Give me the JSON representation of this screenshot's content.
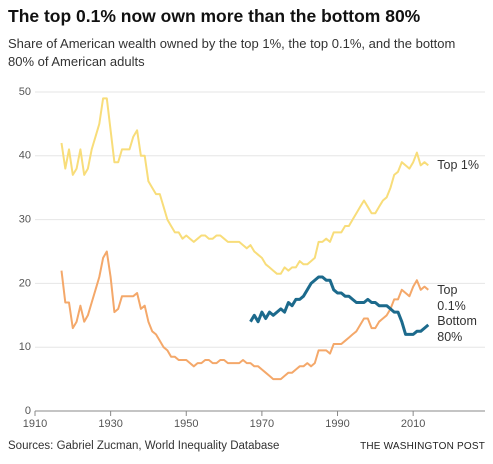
{
  "chart_data": {
    "type": "line",
    "title": "The top 0.1% now own more than the bottom 80%",
    "subtitle": "Share of American wealth owned by the top 1%, the top 0.1%, and the bottom 80% of American adults",
    "source": "Sources: Gabriel Zucman, World Inequality Database",
    "credit": "THE WASHINGTON POST",
    "x": [
      1917,
      1918,
      1919,
      1920,
      1921,
      1922,
      1923,
      1924,
      1925,
      1926,
      1927,
      1928,
      1929,
      1930,
      1931,
      1932,
      1933,
      1934,
      1935,
      1936,
      1937,
      1938,
      1939,
      1940,
      1941,
      1942,
      1943,
      1944,
      1945,
      1946,
      1947,
      1948,
      1949,
      1950,
      1951,
      1952,
      1953,
      1954,
      1955,
      1956,
      1957,
      1958,
      1959,
      1960,
      1961,
      1962,
      1963,
      1964,
      1965,
      1966,
      1967,
      1968,
      1969,
      1970,
      1971,
      1972,
      1973,
      1974,
      1975,
      1976,
      1977,
      1978,
      1979,
      1980,
      1981,
      1982,
      1983,
      1984,
      1985,
      1986,
      1987,
      1988,
      1989,
      1990,
      1991,
      1992,
      1993,
      1994,
      1995,
      1996,
      1997,
      1998,
      1999,
      2000,
      2001,
      2002,
      2003,
      2004,
      2005,
      2006,
      2007,
      2008,
      2009,
      2010,
      2011,
      2012,
      2013,
      2014
    ],
    "series": [
      {
        "name": "Top 1%",
        "color": "#f8dd7a",
        "values": [
          42,
          38,
          41,
          37,
          38,
          41,
          37,
          38,
          41,
          43,
          45,
          49,
          49,
          44,
          39,
          39,
          41,
          41,
          41,
          43,
          44,
          40,
          40,
          36,
          35,
          34,
          34,
          32,
          30,
          29,
          28,
          28,
          27,
          27.5,
          27,
          26.5,
          27,
          27.5,
          27.5,
          27,
          27,
          27.5,
          27.5,
          27,
          26.5,
          26.5,
          26.5,
          26.5,
          26,
          25.5,
          26,
          25,
          24.5,
          24,
          23,
          22.5,
          22,
          21.5,
          21.5,
          22.5,
          22,
          22.5,
          22.5,
          23.5,
          23,
          23,
          23.5,
          24,
          26.5,
          26.5,
          27,
          26.5,
          28,
          28,
          28,
          29,
          29,
          30,
          31,
          32,
          33,
          32,
          31,
          31,
          32,
          33,
          33.5,
          35,
          37,
          37.5,
          39,
          38.5,
          38,
          39,
          40.5,
          38.5,
          39,
          38.5
        ]
      },
      {
        "name": "Top 0.1%",
        "color": "#f4a86a",
        "values": [
          22,
          17,
          17,
          13,
          14,
          16.5,
          14,
          15,
          17,
          19,
          21,
          24,
          25,
          21,
          15.5,
          16,
          18,
          18,
          18,
          18,
          18.5,
          16,
          16.5,
          14,
          12.5,
          12,
          11,
          10,
          9.5,
          8.5,
          8.5,
          8,
          8,
          8,
          7.5,
          7,
          7.5,
          7.5,
          8,
          8,
          7.5,
          7.5,
          8,
          8,
          7.5,
          7.5,
          7.5,
          7.5,
          8,
          7.5,
          7.5,
          7,
          7,
          6.5,
          6,
          5.5,
          5,
          5,
          5,
          5.5,
          6,
          6,
          6.5,
          7,
          7,
          7.5,
          7,
          7.5,
          9.5,
          9.5,
          9.5,
          9,
          10.5,
          10.5,
          10.5,
          11,
          11.5,
          12,
          12.5,
          13.5,
          14.5,
          14.5,
          13,
          13,
          14,
          14.5,
          15,
          16,
          17.5,
          17.5,
          19,
          18.5,
          18,
          19.5,
          20.5,
          19,
          19.5,
          19
        ]
      },
      {
        "name": "Bottom 80%",
        "color": "#1c6a8c",
        "values": [
          null,
          null,
          null,
          null,
          null,
          null,
          null,
          null,
          null,
          null,
          null,
          null,
          null,
          null,
          null,
          null,
          null,
          null,
          null,
          null,
          null,
          null,
          null,
          null,
          null,
          null,
          null,
          null,
          null,
          null,
          null,
          null,
          null,
          null,
          null,
          null,
          null,
          null,
          null,
          null,
          null,
          null,
          null,
          null,
          null,
          null,
          null,
          null,
          null,
          null,
          14,
          15,
          14,
          15.5,
          14.5,
          15.5,
          15,
          15.5,
          16,
          15.5,
          17,
          16.5,
          17.5,
          17.5,
          18,
          19,
          20,
          20.5,
          21,
          21,
          20.5,
          20.5,
          19,
          18.5,
          18.5,
          18,
          18,
          17.5,
          17,
          17,
          17,
          17.5,
          17,
          17,
          16.5,
          16.5,
          16.5,
          16,
          15.5,
          15.5,
          14,
          12,
          12,
          12,
          12.5,
          12.5,
          13,
          13.5
        ]
      }
    ],
    "xlim": [
      1910,
      2029
    ],
    "xticks": [
      1910,
      1930,
      1950,
      1970,
      1990,
      2010
    ],
    "ylim": [
      0,
      50
    ],
    "yticks": [
      0,
      10,
      20,
      30,
      40,
      50
    ],
    "grid": true
  }
}
